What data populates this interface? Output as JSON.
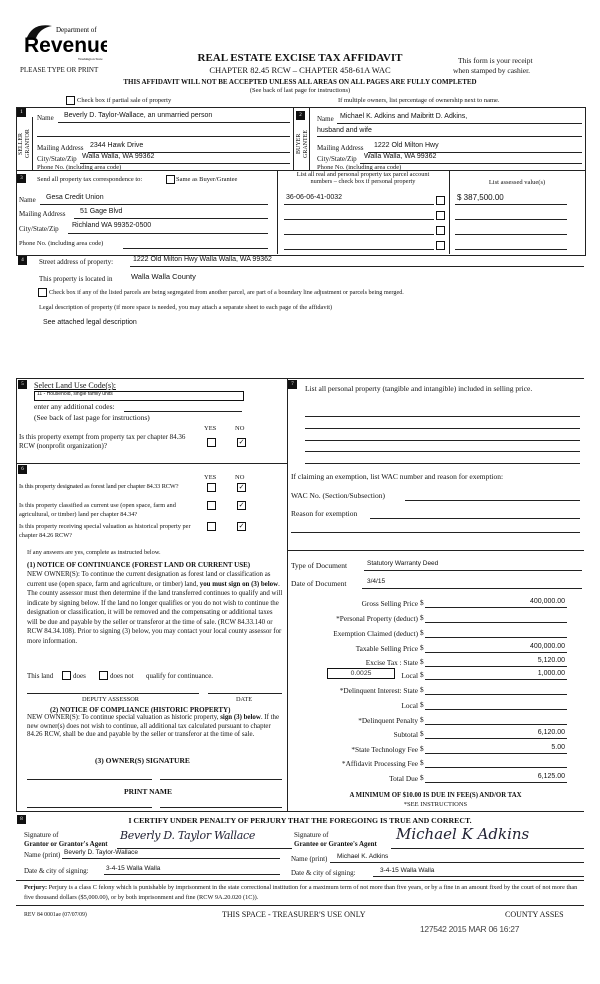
{
  "header": {
    "logo_text": "Department of Revenue Washington State",
    "please_type": "PLEASE TYPE OR PRINT",
    "title": "REAL ESTATE EXCISE TAX AFFIDAVIT",
    "subtitle": "CHAPTER 82.45 RCW – CHAPTER 458-61A WAC",
    "receipt_line1": "This form is your receipt",
    "receipt_line2": "when stamped by cashier.",
    "warning": "THIS AFFIDAVIT WILL NOT BE ACCEPTED UNLESS ALL AREAS ON ALL PAGES ARE FULLY COMPLETED",
    "instructions": "(See back of last page for instructions)",
    "partial_sale_label": "Check box if partial sale of property",
    "multiple_owners": "If multiple owners, list percentage of ownership next to name."
  },
  "seller": {
    "num": "1",
    "side_label1": "SELLER",
    "side_label2": "GRANTOR",
    "name_label": "Name",
    "name": "Beverly D. Taylor-Wallace, an unmarried person",
    "mailing_label": "Mailing Address",
    "mailing": "2344 Hawk Drive",
    "city_label": "City/State/Zip",
    "city": "Walla Walla, WA 99362",
    "phone_label": "Phone No. (including area code)"
  },
  "buyer": {
    "num": "2",
    "side_label1": "BUYER",
    "side_label2": "GRANTEE",
    "name_label": "Name",
    "name": "Michael K. Adkins and Maibritt D. Adkins,",
    "name2": "husband and wife",
    "mailing_label": "Mailing Address",
    "mailing": "1222 Old Milton Hwy",
    "city_label": "City/State/Zip",
    "city": "Walla Walla, WA 99362",
    "phone_label": "Phone No. (including area code)"
  },
  "correspondence": {
    "num": "3",
    "label": "Send all property tax correspondence to:",
    "same_as_label": "Same as Buyer/Grantee",
    "name_label": "Name",
    "name": "Gesa Credit Union",
    "mailing_label": "Mailing Address",
    "mailing": "51 Gage Blvd",
    "city_label": "City/State/Zip",
    "city": "Richland WA 99352-0500",
    "phone_label": "Phone No. (including area code)",
    "parcel_header1": "List all real and personal property tax parcel account",
    "parcel_header2": "numbers – check box if personal property",
    "assessed_header": "List assessed value(s)",
    "parcels": [
      "36-06-06-41-0032",
      "",
      "",
      ""
    ],
    "assessed_values": [
      "$  387,500.00",
      "",
      "",
      ""
    ]
  },
  "property": {
    "num": "4",
    "street_label": "Street address of property:",
    "street": "1222 Old Milton Hwy  Walla Walla, WA 99362",
    "county_label": "This property is located in",
    "county": "Walla Walla County",
    "segregated_label": "Check box if any of the listed parcels are being segregated from another parcel, are part of a boundary line adjustment or parcels being merged.",
    "legal_label": "Legal description of property (if more space is needed, you may attach a separate sheet to each page of the affidavit)",
    "legal": "See attached legal description"
  },
  "land_use": {
    "num": "5",
    "label": "Select Land Use Code(s):",
    "code": "11 - Household, single family units",
    "additional_label": "enter any additional codes:",
    "instructions": "(See back of last page for instructions)",
    "yes": "YES",
    "no": "NO",
    "q_exempt": "Is this property exempt from property tax per chapter 84.36 RCW (nonprofit organization)?",
    "q_exempt_answer": "NO"
  },
  "section6": {
    "num": "6",
    "yes": "YES",
    "no": "NO",
    "questions": [
      {
        "text": "Is this property designated as forest land per chapter 84.33 RCW?",
        "answer": "NO"
      },
      {
        "text": "Is this property classified as current use (open space, farm and agricultural, or timber) land per chapter 84.34?",
        "answer": "NO"
      },
      {
        "text": "Is this property receiving special valuation as historical property per chapter 84.26 RCW?",
        "answer": "NO"
      }
    ],
    "if_yes": "If any answers are yes, complete as instructed below.",
    "notice1_title": "(1) NOTICE OF CONTINUANCE  (FOREST LAND OR CURRENT USE)",
    "notice1_pre": "NEW OWNER(S): To continue the current designation as forest land or classification as current use (open space, farm and agriculture, or timber) land, ",
    "notice1_bold": "you must sign on (3) below",
    "notice1_post": ". The county assessor must then determine if the land transferred continues to qualify and will indicate by signing below. If the land no longer qualifies or you do not wish to continue the designation or classification, it will be removed and the compensating or additional taxes will be due and payable by the seller or transferor at the time of sale. (RCW 84.33.140 or RCW 84.34.108). Prior to signing (3) below, you may contact your local county assessor for more information.",
    "this_land": "This land",
    "does": "does",
    "does_not": "does not",
    "qualify": "qualify for continuance.",
    "deputy_assessor": "DEPUTY ASSESSOR",
    "date": "DATE",
    "notice2_title": "(2) NOTICE OF COMPLIANCE (HISTORIC PROPERTY)",
    "notice2_pre": "NEW OWNER(S): To continue special valuation as historic property, ",
    "notice2_bold": "sign (3) below",
    "notice2_post": ". If the new owner(s) does not wish to continue, all additional tax calculated pursuant to chapter 84.26 RCW, shall be due and payable by the seller or transferor at the time of sale.",
    "owner_signature": "(3)  OWNER(S) SIGNATURE",
    "print_name": "PRINT NAME"
  },
  "section7": {
    "num": "7",
    "personal_property_label": "List all  personal property (tangible and intangible) included in selling price.",
    "exemption_label": "If claiming an exemption, list WAC number and reason for exemption:",
    "wac_label": "WAC No. (Section/Subsection)",
    "reason_label": "Reason for exemption",
    "doc_type_label": "Type of Document",
    "doc_type": "Statutory Warranty Deed",
    "doc_date_label": "Date of Document",
    "doc_date": "3/4/15",
    "local_rate": "0.0025",
    "amounts": [
      {
        "label": "Gross Selling Price",
        "value": "400,000.00"
      },
      {
        "label": "*Personal Property (deduct)",
        "value": ""
      },
      {
        "label": "Exemption Claimed (deduct)",
        "value": ""
      },
      {
        "label": "Taxable Selling Price",
        "value": "400,000.00"
      },
      {
        "label": "Excise Tax : State",
        "value": "5,120.00"
      },
      {
        "label": "Local",
        "value": "1,000.00"
      },
      {
        "label": "*Delinquent Interest: State",
        "value": ""
      },
      {
        "label": "Local",
        "value": ""
      },
      {
        "label": "*Delinquent Penalty",
        "value": ""
      },
      {
        "label": "Subtotal",
        "value": "6,120.00"
      },
      {
        "label": "*State Technology Fee",
        "value": "5.00"
      },
      {
        "label": "*Affidavit Processing Fee",
        "value": ""
      },
      {
        "label": "Total Due",
        "value": "6,125.00"
      }
    ],
    "minimum": "A MINIMUM OF $10.00 IS DUE IN FEE(S) AND/OR TAX",
    "see_instructions": "*SEE INSTRUCTIONS"
  },
  "certification": {
    "num": "8",
    "heading": "I CERTIFY UNDER PENALTY OF PERJURY THAT THE FOREGOING IS TRUE AND CORRECT.",
    "sig_of": "Signature of",
    "grantor_agent": "Grantor or Grantor's Agent",
    "grantee_agent": "Grantee or Grantee's Agent",
    "grantor_signature": "Beverly D. Taylor Wallace",
    "grantee_signature": "Michael K Adkins",
    "name_print_label": "Name (print)",
    "grantor_name": "Beverly D. Taylor-Wallace",
    "grantee_name": "Michael K. Adkins",
    "date_city_label": "Date & city of signing:",
    "grantor_date": "3-4-15 Walla Walla",
    "grantee_date": "3-4-15 Walla Walla"
  },
  "footer": {
    "perjury_bold": "Perjury:",
    "perjury_text": " Perjury is a class C felony which is punishable by imprisonment in the state correctional institution for a maximum term of not more than five years, or by a fine in an amount fixed by the court of not more than five thousand dollars ($5,000.00), or by both imprisonment and fine (RCW 9A.20.020 (1C)).",
    "rev": "REV 84 0001ae (07/07/09)",
    "treasurer": "THIS SPACE - TREASURER'S USE ONLY",
    "county": "COUNTY ASSES",
    "stamp": "127542 2015 MAR 06 16:27"
  }
}
